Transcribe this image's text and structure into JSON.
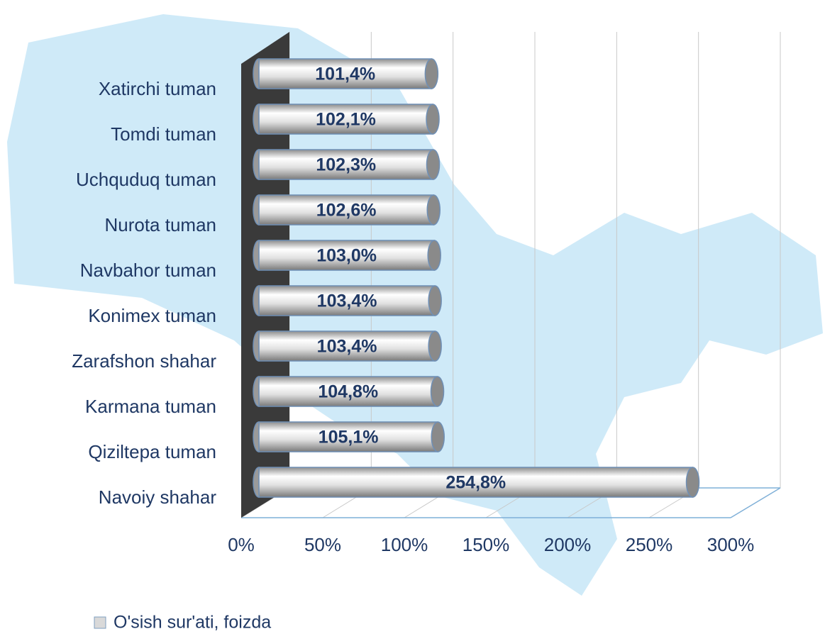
{
  "chart_data": {
    "type": "bar",
    "orientation": "horizontal",
    "categories": [
      "Xatirchi tuman",
      "Tomdi tuman",
      "Uchquduq tuman",
      "Nurota tuman",
      "Navbahor tuman",
      "Konimex tuman",
      "Zarafshon shahar",
      "Karmana tuman",
      "Qiziltepa tuman",
      "Navoiy shahar"
    ],
    "series": [
      {
        "name": "O'sish sur'ati, foizda",
        "color": "#d9d9d9",
        "values": [
          101.4,
          102.1,
          102.3,
          102.6,
          103.0,
          103.4,
          103.4,
          104.8,
          105.1,
          254.8
        ],
        "value_labels": [
          "101,4%",
          "102,1%",
          "102,3%",
          "102,6%",
          "103,0%",
          "103,4%",
          "103,4%",
          "104,8%",
          "105,1%",
          "254,8%"
        ]
      }
    ],
    "xlim": [
      0,
      300
    ],
    "xticks": [
      {
        "value": 0,
        "label": "0%"
      },
      {
        "value": 50,
        "label": "50%"
      },
      {
        "value": 100,
        "label": "100%"
      },
      {
        "value": 150,
        "label": "150%"
      },
      {
        "value": 200,
        "label": "200%"
      },
      {
        "value": 250,
        "label": "250%"
      },
      {
        "value": 300,
        "label": "300%"
      }
    ],
    "grid": true,
    "legend": "bottom-left"
  }
}
